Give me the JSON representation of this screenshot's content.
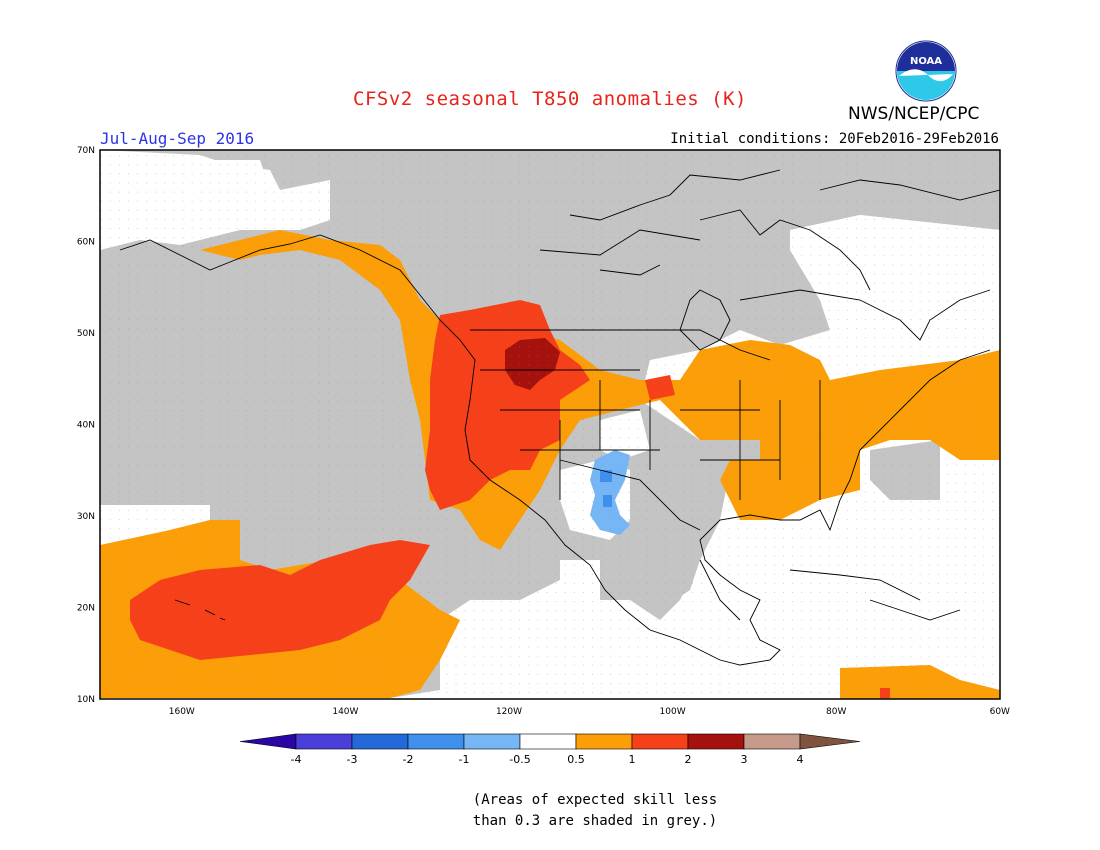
{
  "header": {
    "title": "CFSv2 seasonal T850 anomalies (K)",
    "agency": "NWS/NCEP/CPC",
    "logo_text": "NOAA",
    "season": "Jul-Aug-Sep 2016",
    "initial_conditions": "Initial conditions: 20Feb2016-29Feb2016"
  },
  "map": {
    "lat_labels": [
      "70N",
      "60N",
      "50N",
      "40N",
      "30N",
      "20N",
      "10N"
    ],
    "lon_labels": [
      "160W",
      "140W",
      "120W",
      "100W",
      "80W",
      "60W"
    ],
    "colors": {
      "grey_skill": "#c4c4c4",
      "orange": "#fb9e07",
      "red_orange": "#f5401a",
      "dark_red": "#a5110d",
      "light_blue": "#76b6f4",
      "mid_blue": "#3f8fed",
      "coast": "#000000"
    }
  },
  "colorbar": {
    "labels": [
      "-4",
      "-3",
      "-2",
      "-1",
      "-0.5",
      "0.5",
      "1",
      "2",
      "3",
      "4"
    ],
    "colors": [
      "#2a07a5",
      "#4a3fd8",
      "#2469d9",
      "#3f8fed",
      "#76b6f4",
      "#ffffff",
      "#fb9e07",
      "#f5401a",
      "#a5110d",
      "#c69a8a",
      "#80533f"
    ]
  },
  "note": {
    "line1": "(Areas of expected skill less",
    "line2": "than 0.3 are shaded in grey.)"
  }
}
